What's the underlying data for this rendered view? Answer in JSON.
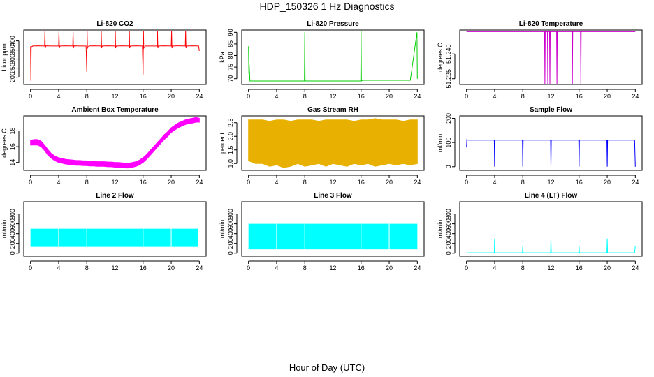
{
  "figure": {
    "title": "HDP_150326  1 Hz Diagnostics",
    "xlabel": "Hour of Day (UTC)"
  },
  "chart_data": [
    {
      "type": "line",
      "id": "co2",
      "title": "Li-820 CO2",
      "ylabel": "Licor ppm",
      "color": "#ff0000",
      "x": [
        0,
        0.05,
        0.1,
        0.15,
        0.3,
        1,
        2,
        2.05,
        2.1,
        2.2,
        3,
        4,
        4.05,
        4.1,
        4.2,
        5,
        6,
        6.05,
        6.1,
        6.2,
        7,
        7.9,
        8,
        8.05,
        8.1,
        8.3,
        9,
        10,
        10.05,
        10.1,
        10.2,
        11,
        12,
        12.05,
        12.1,
        12.2,
        13,
        14,
        14.05,
        14.1,
        14.2,
        15,
        15.9,
        16,
        16.05,
        16.1,
        16.3,
        17,
        18,
        18.05,
        18.1,
        18.2,
        19,
        20,
        20.05,
        20.1,
        20.2,
        21,
        22,
        22.05,
        22.1,
        22.2,
        23,
        23.9,
        24
      ],
      "y": [
        370,
        180,
        372,
        365,
        372,
        373,
        372,
        455,
        360,
        373,
        372,
        372,
        455,
        360,
        372,
        373,
        372,
        450,
        360,
        373,
        372,
        372,
        230,
        455,
        360,
        372,
        373,
        372,
        455,
        360,
        372,
        373,
        372,
        455,
        360,
        372,
        373,
        372,
        455,
        360,
        372,
        373,
        372,
        215,
        455,
        360,
        372,
        372,
        372,
        455,
        360,
        372,
        373,
        372,
        455,
        360,
        372,
        373,
        372,
        455,
        360,
        372,
        373,
        372,
        345
      ],
      "xlim": [
        0,
        24
      ],
      "ylim": [
        160,
        460
      ],
      "xticks": [
        0,
        4,
        8,
        12,
        16,
        20,
        24
      ],
      "xticklabels": [
        "0",
        "4",
        "8",
        "12",
        "16",
        "20",
        "24"
      ],
      "yticks": [
        200,
        250,
        300,
        350,
        400
      ],
      "yticklabels": [
        "200",
        "250",
        "300",
        "350",
        "400"
      ]
    },
    {
      "type": "line",
      "id": "pressure",
      "title": "Li-820 Pressure",
      "ylabel": "kPa",
      "color": "#00cd00",
      "x": [
        0,
        0.05,
        0.1,
        0.2,
        1,
        2,
        3,
        4,
        5,
        6,
        7,
        7.95,
        8,
        8.05,
        8.2,
        9,
        10,
        11,
        12,
        13,
        14,
        15,
        15.95,
        16,
        16.05,
        16.2,
        17,
        18,
        19,
        20,
        21,
        22,
        23,
        23.95,
        24
      ],
      "y": [
        84,
        72,
        76,
        69,
        69,
        69,
        69,
        69,
        69,
        69,
        69,
        69,
        90,
        69,
        69,
        69,
        69,
        69,
        69,
        69,
        69,
        69,
        69,
        91,
        69,
        69.3,
        69.3,
        69.3,
        69.3,
        69.3,
        69.3,
        69.3,
        69.3,
        90,
        70
      ],
      "xlim": [
        0,
        24
      ],
      "ylim": [
        67.5,
        91
      ],
      "xticks": [
        0,
        4,
        8,
        12,
        16,
        20,
        24
      ],
      "xticklabels": [
        "0",
        "4",
        "8",
        "12",
        "16",
        "20",
        "24"
      ],
      "yticks": [
        70,
        75,
        80,
        85,
        90
      ],
      "yticklabels": [
        "70",
        "75",
        "80",
        "85",
        "90"
      ]
    },
    {
      "type": "line",
      "id": "temperature",
      "title": "Li-820 Temperature",
      "ylabel": "degrees C",
      "color": "#cc00cc",
      "x": [
        0,
        11.1,
        11.15,
        11.2,
        11.5,
        11.55,
        11.6,
        11.8,
        11.85,
        11.9,
        12.8,
        12.85,
        12.9,
        15.0,
        15.05,
        15.1,
        16.2,
        16.25,
        16.3,
        24
      ],
      "y": [
        51.2535,
        51.2535,
        51.2215,
        51.2535,
        51.2535,
        51.2215,
        51.2535,
        51.2535,
        51.2215,
        51.2535,
        51.2535,
        51.2215,
        51.2535,
        51.2535,
        51.2215,
        51.2535,
        51.2535,
        51.2215,
        51.2535,
        51.2535
      ],
      "xlim": [
        0,
        24
      ],
      "ylim": [
        51.2215,
        51.2545
      ],
      "xticks": [
        0,
        4,
        8,
        12,
        16,
        20,
        24
      ],
      "xticklabels": [
        "0",
        "4",
        "8",
        "12",
        "16",
        "20",
        "24"
      ],
      "yticks": [
        51.225,
        51.24
      ],
      "yticklabels": [
        "51.225",
        "51.240"
      ]
    },
    {
      "type": "area",
      "id": "ambient",
      "title": "Ambient Box Temperature",
      "ylabel": "degrees C",
      "color": "#ff00ff",
      "x": [
        0,
        0.5,
        1,
        1.5,
        2,
        2.5,
        3,
        3.5,
        4,
        4.5,
        5,
        5.5,
        6,
        6.5,
        7,
        7.5,
        8,
        8.5,
        9,
        9.5,
        10,
        10.5,
        11,
        11.5,
        12,
        12.5,
        13,
        13.5,
        14,
        14.5,
        15,
        15.5,
        16,
        16.5,
        17,
        17.5,
        18,
        18.5,
        19,
        19.5,
        20,
        20.5,
        21,
        21.5,
        22,
        22.5,
        23,
        23.5,
        24
      ],
      "y_low": [
        16.2,
        16.2,
        16.2,
        16.0,
        15.5,
        14.9,
        14.5,
        14.2,
        14.0,
        13.9,
        13.8,
        13.75,
        13.7,
        13.65,
        13.65,
        13.6,
        13.6,
        13.55,
        13.55,
        13.5,
        13.5,
        13.5,
        13.45,
        13.45,
        13.4,
        13.4,
        13.35,
        13.3,
        13.3,
        13.4,
        13.5,
        13.7,
        14.0,
        14.4,
        14.9,
        15.4,
        15.9,
        16.4,
        16.9,
        17.3,
        17.8,
        18.1,
        18.4,
        18.6,
        18.8,
        18.9,
        19.0,
        19.1,
        19.1
      ],
      "y_high": [
        16.8,
        16.9,
        16.9,
        16.7,
        16.2,
        15.6,
        15.1,
        14.8,
        14.6,
        14.5,
        14.4,
        14.35,
        14.3,
        14.25,
        14.25,
        14.2,
        14.2,
        14.15,
        14.15,
        14.1,
        14.1,
        14.1,
        14.05,
        14.05,
        14.0,
        14.0,
        13.95,
        13.9,
        13.9,
        14.0,
        14.1,
        14.3,
        14.6,
        15.0,
        15.5,
        16.0,
        16.5,
        17.0,
        17.5,
        17.9,
        18.4,
        18.7,
        19.0,
        19.2,
        19.4,
        19.5,
        19.6,
        19.7,
        19.6
      ],
      "xlim": [
        0,
        24
      ],
      "ylim": [
        13.0,
        19.9
      ],
      "xticks": [
        0,
        4,
        8,
        12,
        16,
        20,
        24
      ],
      "xticklabels": [
        "0",
        "4",
        "8",
        "12",
        "16",
        "20",
        "24"
      ],
      "yticks": [
        14,
        16,
        18
      ],
      "yticklabels": [
        "14",
        "16",
        "18"
      ]
    },
    {
      "type": "area",
      "id": "rh",
      "title": "Gas Stream RH",
      "ylabel": "percent",
      "color": "#e8b000",
      "x": [
        0,
        1,
        2,
        3,
        4,
        5,
        6,
        7,
        8,
        9,
        10,
        11,
        12,
        13,
        14,
        15,
        16,
        17,
        18,
        19,
        20,
        21,
        22,
        23,
        24
      ],
      "y_low": [
        1.1,
        1.0,
        1.0,
        0.9,
        0.95,
        0.85,
        0.9,
        1.0,
        0.9,
        0.95,
        1.0,
        0.9,
        1.0,
        0.95,
        0.9,
        1.0,
        0.95,
        1.0,
        0.9,
        0.95,
        1.0,
        0.95,
        1.0,
        0.95,
        1.0
      ],
      "y_high": [
        2.6,
        2.6,
        2.6,
        2.55,
        2.6,
        2.6,
        2.55,
        2.6,
        2.6,
        2.6,
        2.55,
        2.6,
        2.6,
        2.6,
        2.6,
        2.55,
        2.6,
        2.6,
        2.65,
        2.6,
        2.6,
        2.6,
        2.55,
        2.6,
        2.6
      ],
      "xlim": [
        0,
        24
      ],
      "ylim": [
        0.75,
        2.75
      ],
      "xticks": [
        0,
        4,
        8,
        12,
        16,
        20,
        24
      ],
      "xticklabels": [
        "0",
        "4",
        "8",
        "12",
        "16",
        "20",
        "24"
      ],
      "yticks": [
        1.0,
        1.5,
        2.0,
        2.5
      ],
      "yticklabels": [
        "1.0",
        "1.5",
        "2.0",
        "2.5"
      ]
    },
    {
      "type": "line",
      "id": "sampleflow",
      "title": "Sample Flow",
      "ylabel": "ml/min",
      "color": "#0000ff",
      "x": [
        0,
        0.05,
        0.1,
        3.95,
        4,
        4.05,
        7.95,
        8,
        8.05,
        11.95,
        12,
        12.05,
        15.95,
        16,
        16.05,
        19.95,
        20,
        20.05,
        23.9,
        24
      ],
      "y": [
        80,
        112,
        110,
        110,
        0,
        110,
        110,
        0,
        110,
        110,
        0,
        110,
        110,
        0,
        110,
        110,
        0,
        110,
        110,
        0
      ],
      "xlim": [
        0,
        24
      ],
      "ylim": [
        -15,
        210
      ],
      "xticks": [
        0,
        4,
        8,
        12,
        16,
        20,
        24
      ],
      "xticklabels": [
        "0",
        "4",
        "8",
        "12",
        "16",
        "20",
        "24"
      ],
      "yticks": [
        0,
        100,
        200
      ],
      "yticklabels": [
        "0",
        "100",
        "200"
      ]
    },
    {
      "type": "area",
      "id": "line2",
      "title": "Line 2 Flow",
      "ylabel": "ml/min",
      "color": "#00ffff",
      "bands": [
        [
          0,
          3.95
        ],
        [
          4.05,
          7.95
        ],
        [
          8.05,
          11.95
        ],
        [
          12.05,
          15.95
        ],
        [
          16.05,
          19.95
        ],
        [
          20.05,
          23.8
        ]
      ],
      "y_low": 130,
      "y_high": 500,
      "xlim": [
        0,
        24
      ],
      "ylim": [
        -60,
        1050
      ],
      "xticks": [
        0,
        4,
        8,
        12,
        16,
        20,
        24
      ],
      "xticklabels": [
        "0",
        "4",
        "8",
        "12",
        "16",
        "20",
        "24"
      ],
      "yticks": [
        0,
        200,
        400,
        600,
        800
      ],
      "yticklabels": [
        "0",
        "200",
        "400",
        "600",
        "800"
      ]
    },
    {
      "type": "area",
      "id": "line3",
      "title": "Line 3 Flow",
      "ylabel": "ml/min",
      "color": "#00ffff",
      "bands": [
        [
          0,
          3.95
        ],
        [
          4.05,
          7.95
        ],
        [
          8.05,
          11.95
        ],
        [
          12.05,
          15.95
        ],
        [
          16.05,
          19.95
        ],
        [
          20.05,
          24
        ]
      ],
      "y_low": 80,
      "y_high": 600,
      "xlim": [
        0,
        24
      ],
      "ylim": [
        -60,
        1050
      ],
      "xticks": [
        0,
        4,
        8,
        12,
        16,
        20,
        24
      ],
      "xticklabels": [
        "0",
        "4",
        "8",
        "12",
        "16",
        "20",
        "24"
      ],
      "yticks": [
        0,
        200,
        400,
        600,
        800
      ],
      "yticklabels": [
        "0",
        "200",
        "400",
        "600",
        "800"
      ]
    },
    {
      "type": "line",
      "id": "line4",
      "title": "Line 4 (LT) Flow",
      "ylabel": "ml/min",
      "color": "#00ffff",
      "x": [
        0,
        3.95,
        4,
        4.05,
        7.95,
        8,
        8.05,
        11.95,
        12,
        12.05,
        15.95,
        16,
        16.05,
        19.95,
        20,
        20.05,
        23.9,
        24
      ],
      "y": [
        10,
        10,
        300,
        10,
        10,
        150,
        10,
        10,
        300,
        10,
        10,
        150,
        10,
        10,
        300,
        10,
        10,
        150
      ],
      "xlim": [
        0,
        24
      ],
      "ylim": [
        -60,
        1050
      ],
      "xticks": [
        0,
        4,
        8,
        12,
        16,
        20,
        24
      ],
      "xticklabels": [
        "0",
        "4",
        "8",
        "12",
        "16",
        "20",
        "24"
      ],
      "yticks": [
        0,
        200,
        400,
        600,
        800
      ],
      "yticklabels": [
        "0",
        "200",
        "400",
        "600",
        "800"
      ]
    }
  ]
}
